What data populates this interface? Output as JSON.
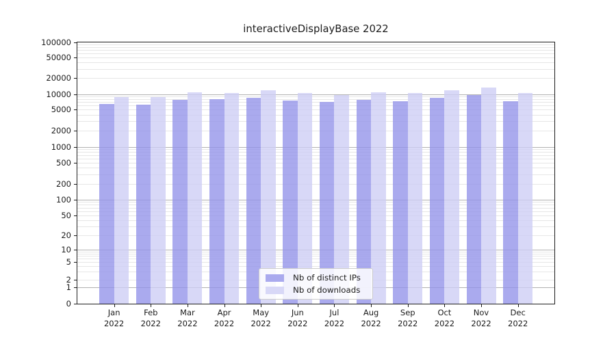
{
  "chart_data": {
    "type": "bar",
    "title": "interactiveDisplayBase 2022",
    "x_labels": [
      [
        "Jan",
        "2022"
      ],
      [
        "Feb",
        "2022"
      ],
      [
        "Mar",
        "2022"
      ],
      [
        "Apr",
        "2022"
      ],
      [
        "May",
        "2022"
      ],
      [
        "Jun",
        "2022"
      ],
      [
        "Jul",
        "2022"
      ],
      [
        "Aug",
        "2022"
      ],
      [
        "Sep",
        "2022"
      ],
      [
        "Oct",
        "2022"
      ],
      [
        "Nov",
        "2022"
      ],
      [
        "Dec",
        "2022"
      ]
    ],
    "series": [
      {
        "name": "Nb of distinct IPs",
        "key": "distinct-ips",
        "color": "#aaaaee",
        "bar_fill": "rgba(146,146,233,0.78)",
        "values": [
          6400,
          6200,
          7800,
          7900,
          8400,
          7500,
          7000,
          7600,
          7300,
          8500,
          9500,
          7200
        ]
      },
      {
        "name": "Nb of downloads",
        "key": "downloads",
        "color": "#d8d8f7",
        "bar_fill": "rgba(205,205,245,0.78)",
        "values": [
          8800,
          8600,
          10700,
          10500,
          11700,
          10600,
          9500,
          10900,
          10400,
          11900,
          13400,
          10400
        ]
      }
    ],
    "y_axis": {
      "scale": "symlog",
      "ticks": [
        0,
        1,
        2,
        5,
        10,
        20,
        50,
        100,
        200,
        500,
        1000,
        2000,
        5000,
        10000,
        20000,
        50000,
        100000
      ],
      "range": [
        0,
        100000
      ]
    },
    "grid": {
      "which": "both",
      "major_color": "#b0b0b0",
      "minor_color": "#e6e6e6"
    },
    "legend": {
      "position": "lower center",
      "entries": [
        "Nb of distinct IPs",
        "Nb of downloads"
      ]
    }
  }
}
